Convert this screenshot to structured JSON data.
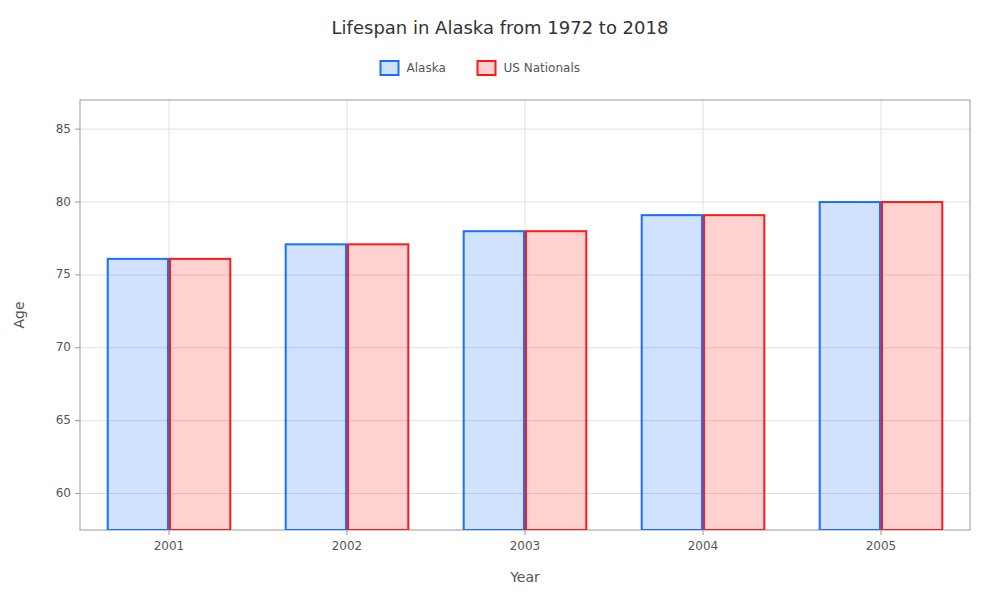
{
  "chart_data": {
    "type": "bar",
    "title": "Lifespan in Alaska from 1972 to 2018",
    "x_label": "Year",
    "y_label": "Age",
    "categories": [
      "2001",
      "2002",
      "2003",
      "2004",
      "2005"
    ],
    "series": [
      {
        "name": "Alaska",
        "color": "#1a6fff",
        "values": [
          76.1,
          77.1,
          78.0,
          79.1,
          80.0
        ]
      },
      {
        "name": "US Nationals",
        "color": "#ff1a1a",
        "values": [
          76.1,
          77.1,
          78.0,
          79.1,
          80.0
        ]
      }
    ],
    "ylim": [
      57.5,
      87
    ],
    "yticks": [
      60,
      65,
      70,
      75,
      80,
      85
    ],
    "grid": true,
    "legend": "top"
  }
}
